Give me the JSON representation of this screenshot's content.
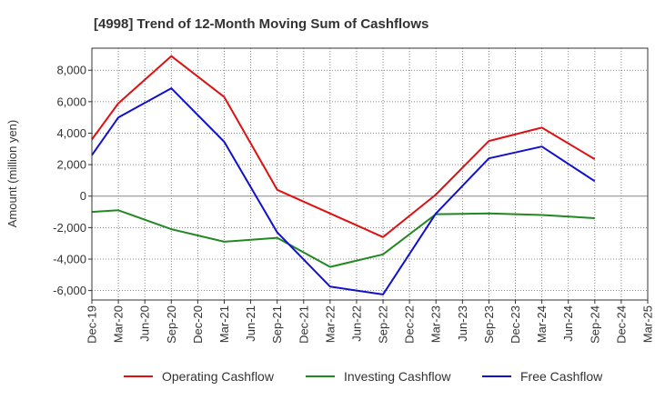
{
  "chart_data": {
    "type": "line",
    "title": "[4998]  Trend of 12-Month Moving Sum of Cashflows",
    "ylabel": "Amount (million yen)",
    "xlabel": "",
    "ylim": [
      -6600,
      9400
    ],
    "yticks": [
      -6000,
      -4000,
      -2000,
      0,
      2000,
      4000,
      6000,
      8000
    ],
    "ytick_labels": [
      "-6,000",
      "-4,000",
      "-2,000",
      "0",
      "2,000",
      "4,000",
      "6,000",
      "8,000"
    ],
    "categories": [
      "Dec-19",
      "Mar-20",
      "Jun-20",
      "Sep-20",
      "Dec-20",
      "Mar-21",
      "Jun-21",
      "Sep-21",
      "Dec-21",
      "Mar-22",
      "Jun-22",
      "Sep-22",
      "Dec-22",
      "Mar-23",
      "Jun-23",
      "Sep-23",
      "Dec-23",
      "Mar-24",
      "Jun-24",
      "Sep-24",
      "Dec-24",
      "Mar-25"
    ],
    "grid": true,
    "legend_position": "bottom",
    "series": [
      {
        "name": "Operating Cashflow",
        "color": "#dd1111",
        "values": [
          3600,
          5900,
          null,
          8900,
          null,
          6300,
          null,
          400,
          null,
          -1100,
          null,
          -2600,
          null,
          100,
          null,
          3500,
          null,
          4350,
          null,
          2350,
          null,
          null
        ]
      },
      {
        "name": "Investing Cashflow",
        "color": "#228822",
        "values": [
          -1000,
          -900,
          null,
          -2100,
          null,
          -2900,
          null,
          -2650,
          null,
          -4500,
          null,
          -3700,
          null,
          -1150,
          null,
          -1100,
          null,
          -1200,
          null,
          -1400,
          null,
          null
        ]
      },
      {
        "name": "Free Cashflow",
        "color": "#1111cc",
        "values": [
          2600,
          5000,
          null,
          6850,
          null,
          3450,
          null,
          -2300,
          null,
          -5750,
          null,
          -6250,
          null,
          -1100,
          null,
          2400,
          null,
          3150,
          null,
          950,
          null,
          null
        ]
      }
    ]
  }
}
